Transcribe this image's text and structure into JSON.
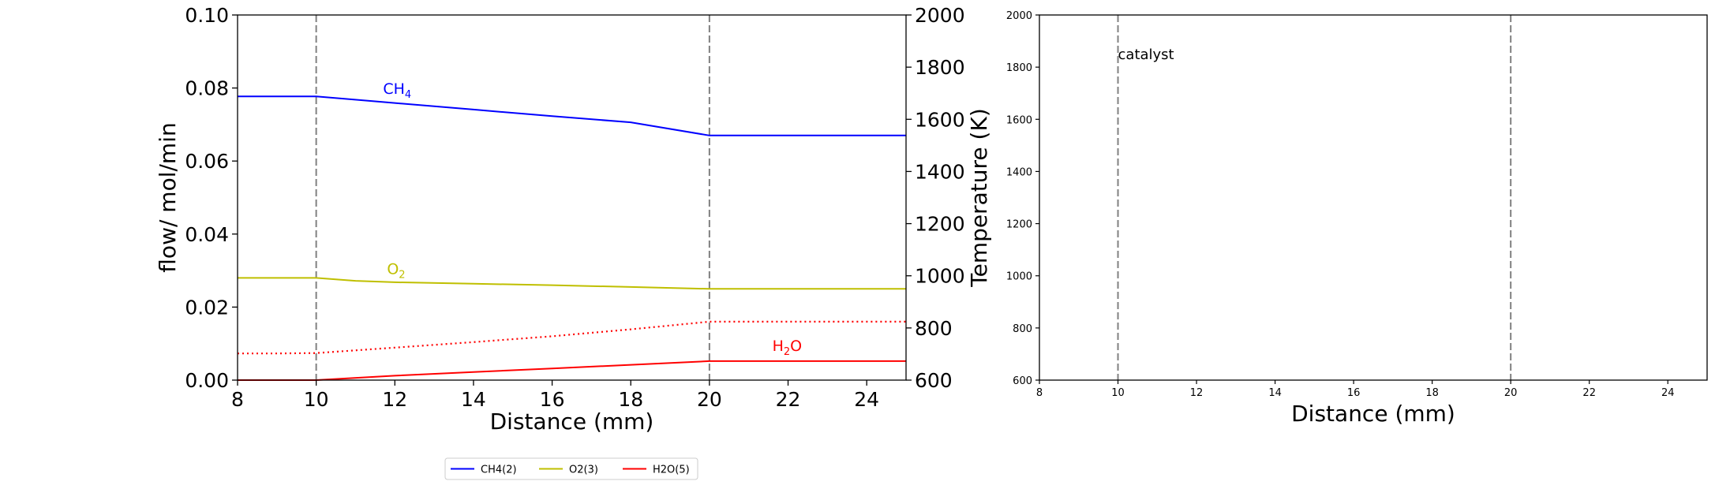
{
  "chart_data": [
    {
      "type": "line",
      "xlabel": "Distance (mm)",
      "ylabel": "flow/ mol/min",
      "y2label": "Temperature (K)",
      "xlim": [
        8,
        25
      ],
      "ylim": [
        0,
        0.1
      ],
      "y2lim": [
        600,
        2000
      ],
      "xticks": [
        8,
        10,
        12,
        14,
        16,
        18,
        20,
        22,
        24
      ],
      "yticks": [
        0.0,
        0.02,
        0.04,
        0.06,
        0.08,
        0.1
      ],
      "ytick_labels": [
        "0.00",
        "0.02",
        "0.04",
        "0.06",
        "0.08",
        "0.10"
      ],
      "y2ticks": [
        600,
        800,
        1000,
        1200,
        1400,
        1600,
        1800,
        2000
      ],
      "vlines": [
        10,
        20
      ],
      "grid": false,
      "legend_position": "bottom-center",
      "series": [
        {
          "name": "CH4(2)",
          "color": "#0000ff",
          "style": "solid",
          "x": [
            8,
            10,
            12,
            14,
            16,
            18,
            20,
            22,
            25
          ],
          "y": [
            0.0777,
            0.0777,
            0.0759,
            0.0741,
            0.0723,
            0.0706,
            0.067,
            0.067,
            0.067
          ]
        },
        {
          "name": "O2(3)",
          "color": "#bfbf00",
          "style": "solid",
          "x": [
            8,
            10,
            11,
            12,
            14,
            16,
            18,
            20,
            22,
            25
          ],
          "y": [
            0.028,
            0.028,
            0.0272,
            0.0268,
            0.0264,
            0.026,
            0.0255,
            0.025,
            0.025,
            0.025
          ]
        },
        {
          "name": "H2O(5)",
          "color": "#ff0000",
          "style": "solid",
          "x": [
            8,
            10,
            12,
            14,
            16,
            18,
            20,
            22,
            25
          ],
          "y": [
            0.0,
            0.0,
            0.0012,
            0.0022,
            0.0032,
            0.0042,
            0.0052,
            0.0052,
            0.0052
          ]
        },
        {
          "name": "",
          "color": "#ff0000",
          "style": "dotted",
          "x": [
            8,
            9,
            10,
            12,
            14,
            16,
            18,
            20,
            22,
            25
          ],
          "y": [
            0.0073,
            0.0073,
            0.0074,
            0.0089,
            0.0104,
            0.012,
            0.0139,
            0.016,
            0.016,
            0.016
          ]
        }
      ],
      "annotations": [
        {
          "base": "CH",
          "sub": "4",
          "tail": "",
          "x": 11.7,
          "y": 0.0784,
          "color": "#0000ff"
        },
        {
          "base": "O",
          "sub": "2",
          "tail": "",
          "x": 11.8,
          "y": 0.029,
          "color": "#bfbf00"
        },
        {
          "base": "H",
          "sub": "2",
          "tail": "O",
          "x": 21.6,
          "y": 0.008,
          "color": "#ff0000"
        }
      ]
    },
    {
      "type": "line",
      "xlabel": "Distance (mm)",
      "ylabel": "",
      "xlim": [
        8,
        25
      ],
      "ylim": [
        600,
        2000
      ],
      "xticks": [
        8,
        10,
        12,
        14,
        16,
        18,
        20,
        22,
        24
      ],
      "yticks": [
        600,
        800,
        1000,
        1200,
        1400,
        1600,
        1800,
        2000
      ],
      "vlines": [
        10,
        20
      ],
      "grid": false,
      "series": [],
      "annotations": [
        {
          "text": "catalyst",
          "x": 10.0,
          "y": 1830,
          "color": "#000000"
        }
      ]
    }
  ],
  "legend": {
    "items": [
      {
        "label": "CH4(2)",
        "color": "#0000ff"
      },
      {
        "label": "O2(3)",
        "color": "#bfbf00"
      },
      {
        "label": "H2O(5)",
        "color": "#ff0000"
      }
    ]
  }
}
